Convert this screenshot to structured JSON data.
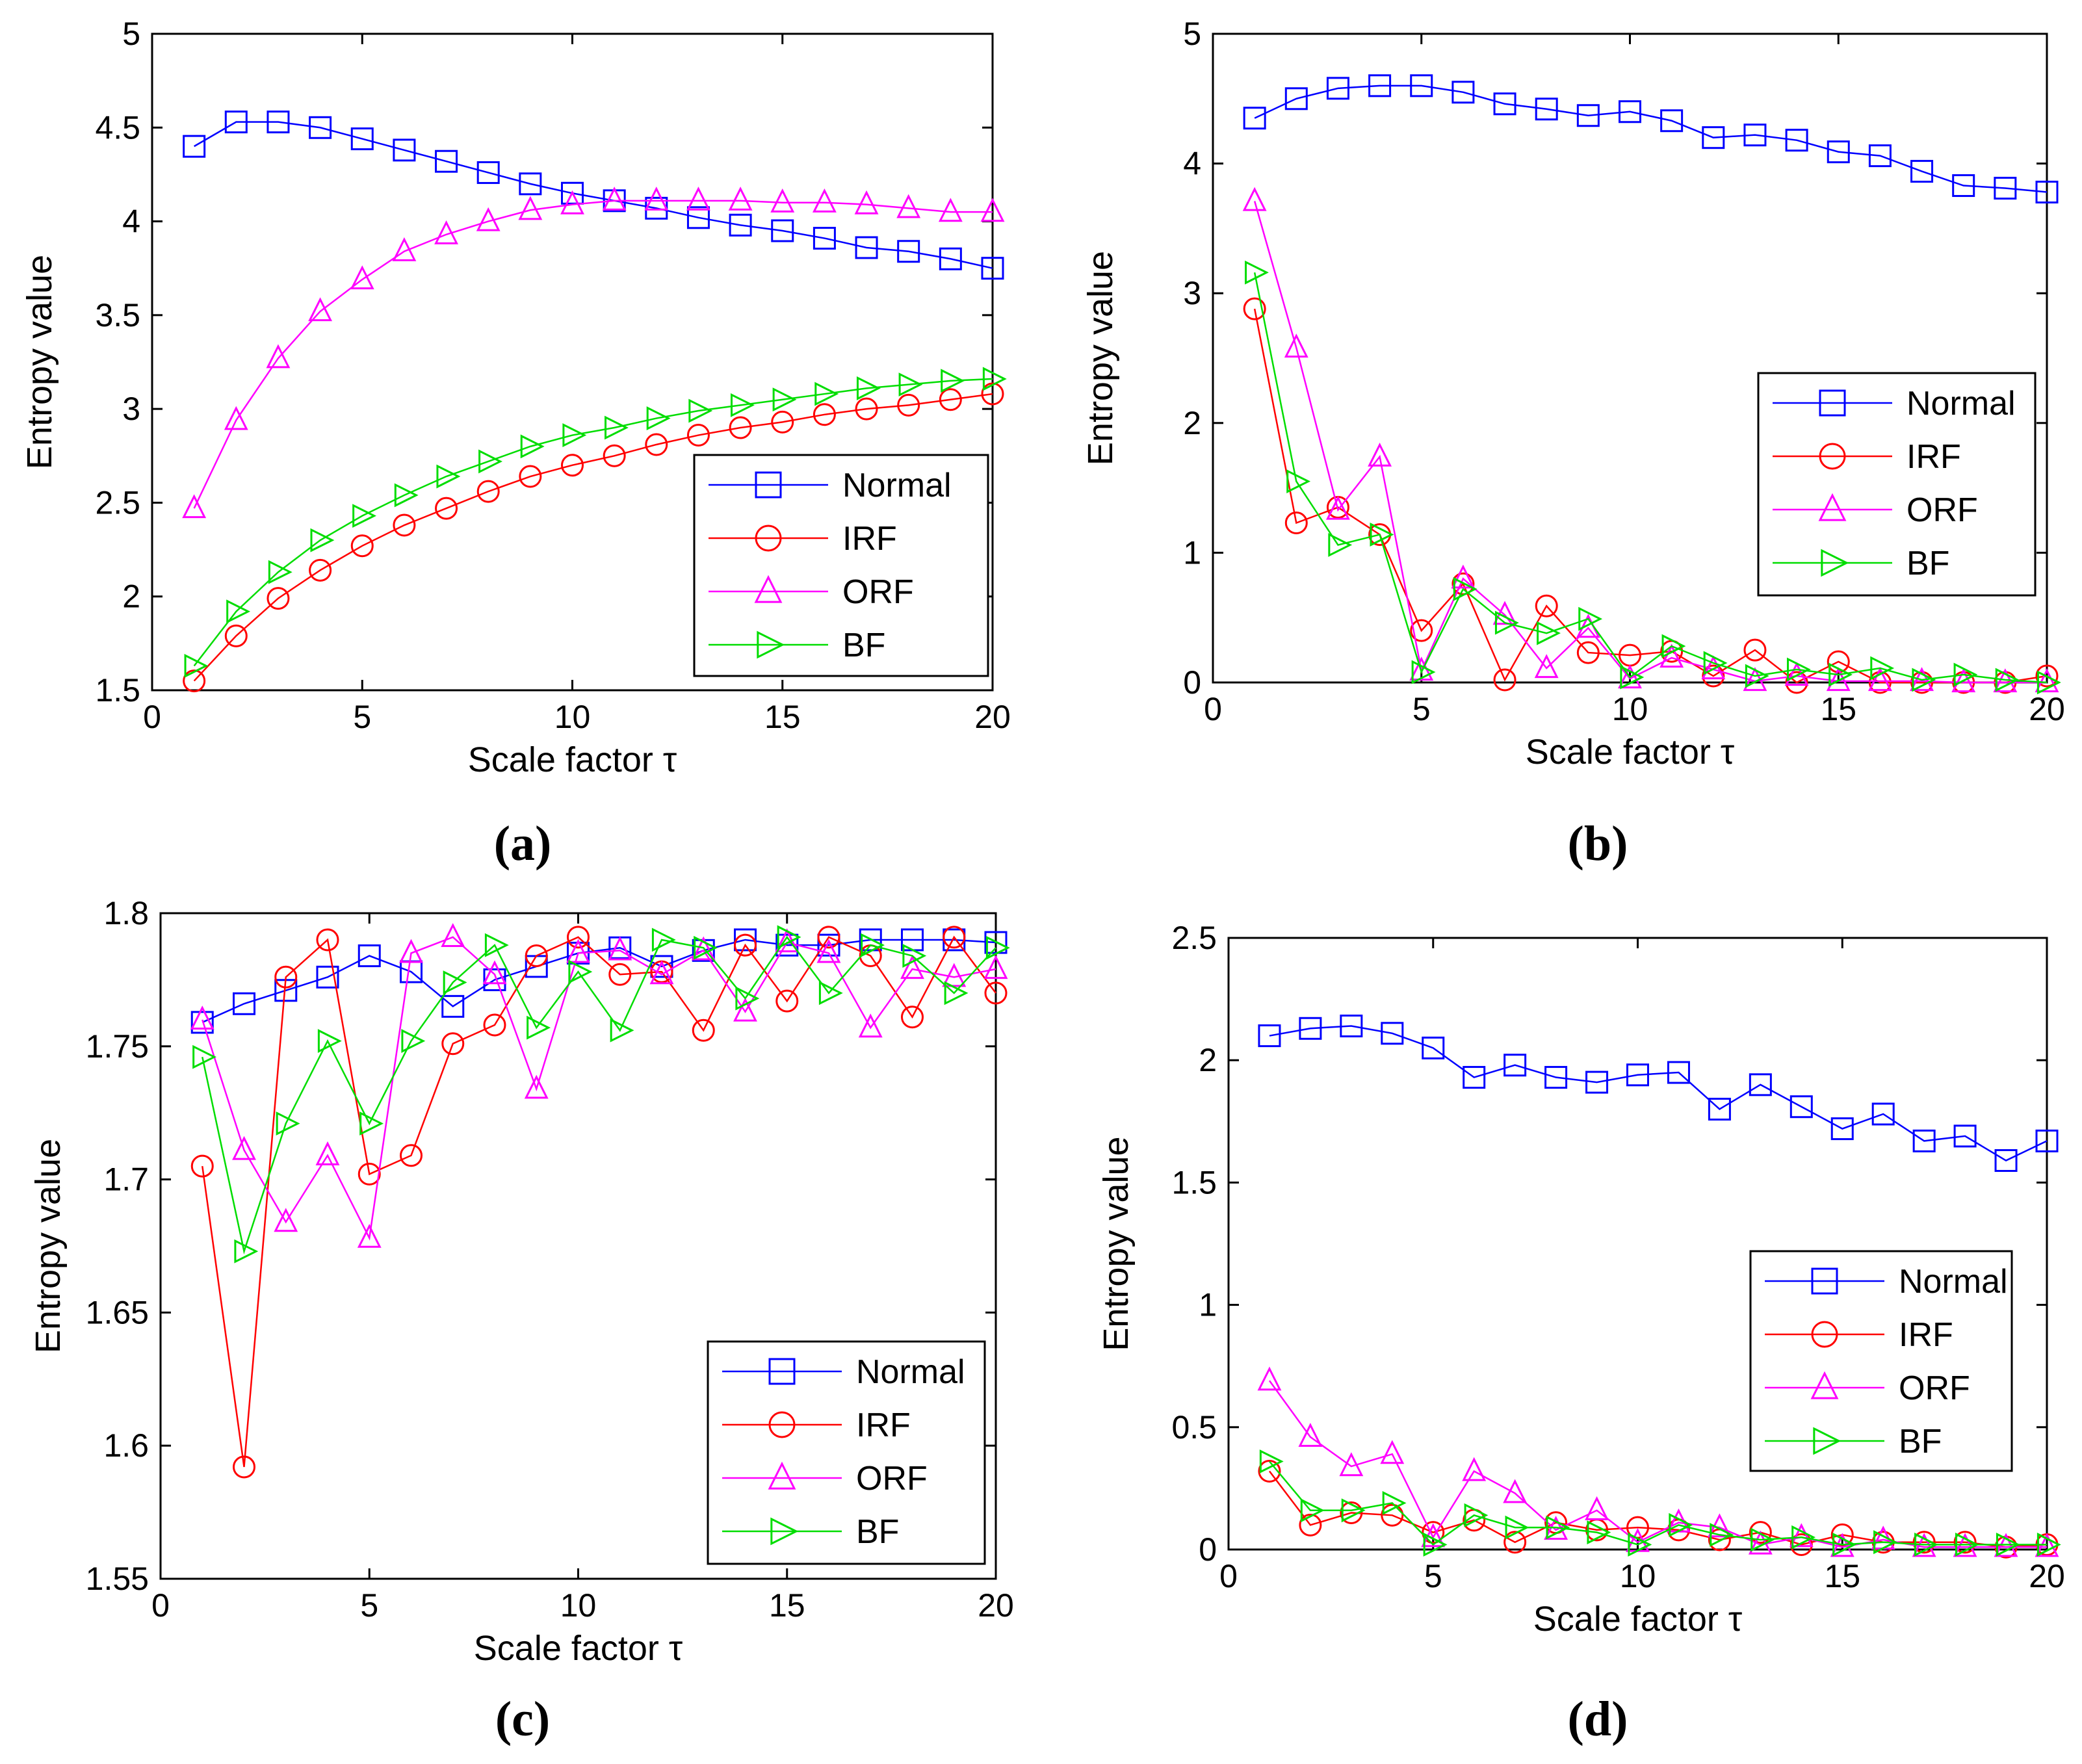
{
  "figure": {
    "panel_labels": [
      "(a)",
      "(b)",
      "(c)",
      "(d)"
    ]
  },
  "series_style": {
    "Normal": {
      "color": "#0000ff",
      "marker": "square"
    },
    "IRF": {
      "color": "#ff0000",
      "marker": "circle"
    },
    "ORF": {
      "color": "#ff00ff",
      "marker": "triangle-up"
    },
    "BF": {
      "color": "#00dd00",
      "marker": "triangle-right"
    }
  },
  "chart_data": [
    {
      "id": "a",
      "type": "line",
      "title": "",
      "xlabel": "Scale factor τ",
      "ylabel": "Entropy value",
      "xlim": [
        0,
        20
      ],
      "ylim": [
        1.5,
        5
      ],
      "xticks": [
        0,
        5,
        10,
        15,
        20
      ],
      "yticks": [
        1.5,
        2,
        2.5,
        3,
        3.5,
        4,
        4.5,
        5
      ],
      "xtick_labels": [
        "0",
        "5",
        "10",
        "15",
        "20"
      ],
      "ytick_labels": [
        "1.5",
        "2",
        "2.5",
        "3",
        "3.5",
        "4",
        "4.5",
        "5"
      ],
      "legend_position": "lower-right",
      "x": [
        1,
        2,
        3,
        4,
        5,
        6,
        7,
        8,
        9,
        10,
        11,
        12,
        13,
        14,
        15,
        16,
        17,
        18,
        19,
        20
      ],
      "series": [
        {
          "name": "Normal",
          "values": [
            4.4,
            4.53,
            4.53,
            4.5,
            4.44,
            4.38,
            4.32,
            4.26,
            4.2,
            4.15,
            4.11,
            4.07,
            4.02,
            3.98,
            3.95,
            3.91,
            3.86,
            3.84,
            3.8,
            3.75
          ]
        },
        {
          "name": "IRF",
          "values": [
            1.55,
            1.79,
            1.99,
            2.14,
            2.27,
            2.38,
            2.47,
            2.56,
            2.64,
            2.7,
            2.75,
            2.81,
            2.86,
            2.9,
            2.93,
            2.97,
            3.0,
            3.02,
            3.05,
            3.08
          ]
        },
        {
          "name": "ORF",
          "values": [
            2.47,
            2.94,
            3.27,
            3.52,
            3.69,
            3.84,
            3.93,
            4.0,
            4.06,
            4.09,
            4.11,
            4.11,
            4.11,
            4.11,
            4.1,
            4.1,
            4.09,
            4.07,
            4.05,
            4.05
          ]
        },
        {
          "name": "BF",
          "values": [
            1.63,
            1.92,
            2.13,
            2.3,
            2.43,
            2.54,
            2.64,
            2.72,
            2.8,
            2.86,
            2.9,
            2.95,
            2.99,
            3.02,
            3.05,
            3.08,
            3.11,
            3.13,
            3.15,
            3.16
          ]
        }
      ]
    },
    {
      "id": "b",
      "type": "line",
      "title": "",
      "xlabel": "Scale factor τ",
      "ylabel": "Entropy value",
      "xlim": [
        0,
        20
      ],
      "ylim": [
        0,
        5
      ],
      "xticks": [
        0,
        5,
        10,
        15,
        20
      ],
      "yticks": [
        0,
        1,
        2,
        3,
        4,
        5
      ],
      "xtick_labels": [
        "0",
        "5",
        "10",
        "15",
        "20"
      ],
      "ytick_labels": [
        "0",
        "1",
        "2",
        "3",
        "4",
        "5"
      ],
      "legend_position": "middle-right",
      "x": [
        1,
        2,
        3,
        4,
        5,
        6,
        7,
        8,
        9,
        10,
        11,
        12,
        13,
        14,
        15,
        16,
        17,
        18,
        19,
        20
      ],
      "series": [
        {
          "name": "Normal",
          "values": [
            4.35,
            4.5,
            4.58,
            4.6,
            4.6,
            4.55,
            4.46,
            4.42,
            4.37,
            4.4,
            4.33,
            4.2,
            4.22,
            4.18,
            4.09,
            4.06,
            3.94,
            3.83,
            3.81,
            3.78
          ]
        },
        {
          "name": "IRF",
          "values": [
            2.88,
            1.23,
            1.35,
            1.14,
            0.4,
            0.76,
            0.02,
            0.59,
            0.23,
            0.21,
            0.24,
            0.05,
            0.25,
            0.0,
            0.16,
            0.0,
            0.0,
            0.0,
            0.0,
            0.05
          ]
        },
        {
          "name": "ORF",
          "values": [
            3.71,
            2.58,
            1.33,
            1.74,
            0.09,
            0.8,
            0.52,
            0.11,
            0.42,
            0.03,
            0.19,
            0.1,
            0.01,
            0.05,
            0.01,
            0.01,
            0.01,
            0.0,
            0.0,
            0.0
          ]
        },
        {
          "name": "BF",
          "values": [
            3.16,
            1.55,
            1.06,
            1.14,
            0.08,
            0.72,
            0.46,
            0.38,
            0.49,
            0.04,
            0.28,
            0.15,
            0.05,
            0.1,
            0.06,
            0.11,
            0.02,
            0.06,
            0.02,
            0.0
          ]
        }
      ]
    },
    {
      "id": "c",
      "type": "line",
      "title": "",
      "xlabel": "Scale factor τ",
      "ylabel": "Entropy value",
      "xlim": [
        0,
        20
      ],
      "ylim": [
        1.55,
        1.8
      ],
      "xticks": [
        0,
        5,
        10,
        15,
        20
      ],
      "yticks": [
        1.55,
        1.6,
        1.65,
        1.7,
        1.75,
        1.8
      ],
      "xtick_labels": [
        "0",
        "5",
        "10",
        "15",
        "20"
      ],
      "ytick_labels": [
        "1.55",
        "1.6",
        "1.65",
        "1.7",
        "1.75",
        "1.8"
      ],
      "legend_position": "lower-right",
      "x": [
        1,
        2,
        3,
        4,
        5,
        6,
        7,
        8,
        9,
        10,
        11,
        12,
        13,
        14,
        15,
        16,
        17,
        18,
        19,
        20
      ],
      "series": [
        {
          "name": "Normal",
          "values": [
            1.759,
            1.766,
            1.771,
            1.776,
            1.784,
            1.778,
            1.765,
            1.775,
            1.78,
            1.785,
            1.787,
            1.78,
            1.786,
            1.79,
            1.788,
            1.788,
            1.79,
            1.79,
            1.79,
            1.789
          ]
        },
        {
          "name": "IRF",
          "values": [
            1.705,
            1.592,
            1.776,
            1.79,
            1.702,
            1.709,
            1.751,
            1.758,
            1.784,
            1.791,
            1.777,
            1.778,
            1.756,
            1.788,
            1.767,
            1.791,
            1.784,
            1.761,
            1.791,
            1.77
          ]
        },
        {
          "name": "ORF",
          "values": [
            1.76,
            1.711,
            1.684,
            1.709,
            1.678,
            1.785,
            1.791,
            1.777,
            1.734,
            1.785,
            1.786,
            1.777,
            1.786,
            1.763,
            1.789,
            1.785,
            1.757,
            1.779,
            1.776,
            1.779
          ]
        },
        {
          "name": "BF",
          "values": [
            1.746,
            1.673,
            1.721,
            1.752,
            1.721,
            1.752,
            1.774,
            1.788,
            1.757,
            1.778,
            1.756,
            1.79,
            1.787,
            1.768,
            1.791,
            1.77,
            1.788,
            1.784,
            1.77,
            1.787
          ]
        }
      ]
    },
    {
      "id": "d",
      "type": "line",
      "title": "",
      "xlabel": "Scale factor τ",
      "ylabel": "Entropy value",
      "xlim": [
        0,
        20
      ],
      "ylim": [
        0,
        2.5
      ],
      "xticks": [
        0,
        5,
        10,
        15,
        20
      ],
      "yticks": [
        0,
        0.5,
        1,
        1.5,
        2,
        2.5
      ],
      "xtick_labels": [
        "0",
        "5",
        "10",
        "15",
        "20"
      ],
      "ytick_labels": [
        "0",
        "0.5",
        "1",
        "1.5",
        "2",
        "2.5"
      ],
      "legend_position": "middle-right",
      "x": [
        1,
        2,
        3,
        4,
        5,
        6,
        7,
        8,
        9,
        10,
        11,
        12,
        13,
        14,
        15,
        16,
        17,
        18,
        19,
        20
      ],
      "series": [
        {
          "name": "Normal",
          "values": [
            2.1,
            2.13,
            2.14,
            2.11,
            2.05,
            1.93,
            1.98,
            1.93,
            1.91,
            1.94,
            1.95,
            1.8,
            1.9,
            1.81,
            1.72,
            1.78,
            1.67,
            1.69,
            1.59,
            1.67
          ]
        },
        {
          "name": "IRF",
          "values": [
            0.32,
            0.1,
            0.15,
            0.14,
            0.07,
            0.12,
            0.03,
            0.11,
            0.08,
            0.09,
            0.08,
            0.04,
            0.07,
            0.02,
            0.06,
            0.03,
            0.03,
            0.03,
            0.01,
            0.02
          ]
        },
        {
          "name": "ORF",
          "values": [
            0.69,
            0.46,
            0.34,
            0.39,
            0.05,
            0.32,
            0.23,
            0.08,
            0.16,
            0.03,
            0.11,
            0.09,
            0.02,
            0.05,
            0.01,
            0.04,
            0.01,
            0.01,
            0.01,
            0.01
          ]
        },
        {
          "name": "BF",
          "values": [
            0.36,
            0.16,
            0.16,
            0.19,
            0.02,
            0.14,
            0.09,
            0.09,
            0.07,
            0.02,
            0.1,
            0.06,
            0.04,
            0.05,
            0.02,
            0.03,
            0.02,
            0.02,
            0.02,
            0.02
          ]
        }
      ]
    }
  ]
}
